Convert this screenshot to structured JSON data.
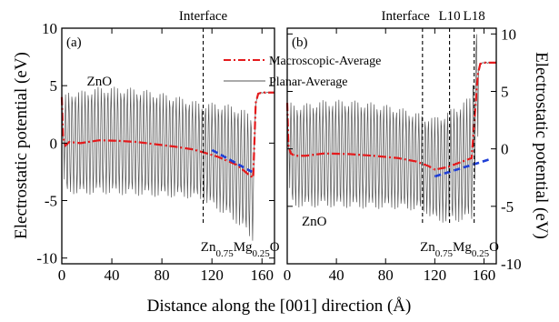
{
  "chart_data": {
    "type": "line",
    "xlabel": "Distance along the [001] direction (Å)",
    "ylabel_left": "Electrostatic potential (eV)",
    "ylabel_right": "Electrostatic potential (eV)",
    "legend": {
      "macro": "Macroscopic-Average",
      "planar": "Planar-Average"
    },
    "colors": {
      "macro": "#e41a1c",
      "planar": "#555555",
      "fit": "#1f3fd6",
      "frame": "#000000"
    },
    "panels": [
      {
        "tag": "(a)",
        "xlim": [
          0,
          170
        ],
        "ylim": [
          -10.5,
          10
        ],
        "xticks": [
          "0",
          "40",
          "80",
          "120",
          "160"
        ],
        "xtick_values": [
          0,
          40,
          80,
          120,
          160
        ],
        "yticks": [
          "10",
          "5",
          "0",
          "-5",
          "-10"
        ],
        "ytick_values": [
          10,
          5,
          0,
          -5,
          -10
        ],
        "interface_label": "Interface",
        "interface_x": 113,
        "region_top": "ZnO",
        "region_bottom": {
          "main": "Zn",
          "sub1": "0.75",
          "mid": "Mg",
          "sub2": "0.25",
          "tail": "O"
        },
        "macroscopic": {
          "x": [
            0,
            1,
            3,
            6,
            15,
            30,
            45,
            60,
            75,
            90,
            105,
            113,
            125,
            140,
            150,
            153,
            155,
            157,
            160,
            165,
            170
          ],
          "y": [
            4,
            0.5,
            -0.2,
            0.1,
            0,
            0.25,
            0.2,
            0.1,
            -0.1,
            -0.3,
            -0.55,
            -0.8,
            -1.2,
            -1.9,
            -2.8,
            -3,
            3.5,
            4.3,
            4.4,
            4.4,
            4.4
          ]
        },
        "fit": {
          "x": [
            120,
            152
          ],
          "y": [
            -0.6,
            -2.5
          ]
        }
      },
      {
        "tag": "(b)",
        "xlim": [
          0,
          170
        ],
        "ylim": [
          -10,
          10.5
        ],
        "xticks": [
          "0",
          "40",
          "80",
          "120",
          "160"
        ],
        "xtick_values": [
          0,
          40,
          80,
          120,
          160
        ],
        "yticks": [
          "10",
          "5",
          "0",
          "-5",
          "-10"
        ],
        "ytick_values": [
          10,
          5,
          0,
          -5,
          -10
        ],
        "interface_label": "Interface",
        "interface_x": 110,
        "layer_labels": [
          {
            "label": "L10",
            "x": 132
          },
          {
            "label": "L18",
            "x": 152
          }
        ],
        "region_top": "ZnO",
        "region_bottom": {
          "main": "Zn",
          "sub1": "0.75",
          "mid": "Mg",
          "sub2": "0.25",
          "tail": "O"
        },
        "macroscopic": {
          "x": [
            0,
            1,
            3,
            6,
            15,
            30,
            50,
            70,
            90,
            105,
            115,
            120,
            130,
            140,
            150,
            155,
            157,
            160,
            165,
            170
          ],
          "y": [
            4,
            0.2,
            -0.4,
            -0.6,
            -0.6,
            -0.4,
            -0.45,
            -0.6,
            -0.8,
            -1.1,
            -1.5,
            -1.8,
            -1.6,
            -1.2,
            -0.8,
            6.5,
            7.4,
            7.5,
            7.5,
            7.5
          ]
        },
        "fit": {
          "x": [
            120,
            165
          ],
          "y": [
            -2.4,
            -0.9
          ]
        }
      }
    ]
  }
}
